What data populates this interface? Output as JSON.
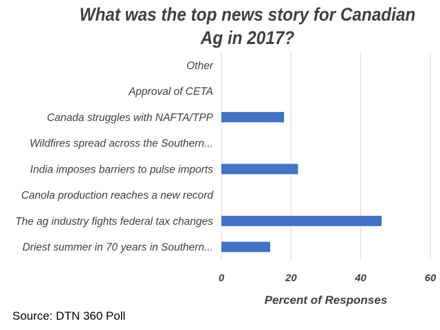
{
  "chart_data": {
    "type": "bar",
    "orientation": "horizontal",
    "title": "What was the top news story for Canadian Ag in 2017?",
    "categories": [
      "Other",
      "Approval of CETA",
      "Canada struggles with NAFTA/TPP",
      "Wildfires spread across the Southern...",
      "India imposes barriers to pulse imports",
      "Canola production reaches a new record",
      "The ag industry fights federal tax changes",
      "Driest summer in 70 years in Southern..."
    ],
    "values": [
      0,
      0,
      18,
      0,
      22,
      0,
      46,
      14
    ],
    "xlabel": "Percent of Responses",
    "ylabel": "",
    "xlim": [
      0,
      60
    ],
    "xticks": [
      "0",
      "20",
      "40",
      "60"
    ],
    "grid": "vertical",
    "bar_color": "#4472c4"
  },
  "source": "Source: DTN 360 Poll"
}
